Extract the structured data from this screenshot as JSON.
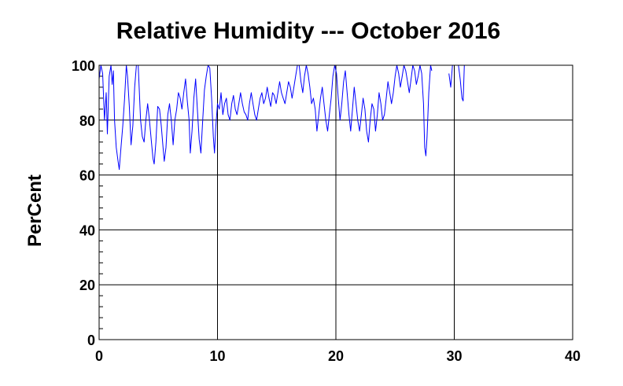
{
  "chart_data": {
    "type": "line",
    "title": "Relative Humidity --- October 2016",
    "xlabel": "",
    "ylabel": "PerCent",
    "xlim": [
      0,
      40
    ],
    "ylim": [
      0,
      100
    ],
    "x_ticks": [
      "0",
      "10",
      "20",
      "30",
      "40"
    ],
    "y_ticks": [
      "0",
      "20",
      "40",
      "60",
      "80",
      "100"
    ],
    "grid": true,
    "series": [
      {
        "color": "#0000ff",
        "points": [
          [
            0.0,
            95
          ],
          [
            0.15,
            100
          ],
          [
            0.3,
            97
          ],
          [
            0.45,
            80
          ],
          [
            0.6,
            90
          ],
          [
            0.7,
            75
          ],
          [
            0.85,
            96
          ],
          [
            1.0,
            100
          ],
          [
            1.1,
            93
          ],
          [
            1.2,
            98
          ],
          [
            1.3,
            80
          ],
          [
            1.45,
            70
          ],
          [
            1.6,
            65
          ],
          [
            1.7,
            62
          ],
          [
            1.85,
            70
          ],
          [
            2.0,
            78
          ],
          [
            2.15,
            88
          ],
          [
            2.3,
            100
          ],
          [
            2.4,
            96
          ],
          [
            2.55,
            85
          ],
          [
            2.7,
            71
          ],
          [
            2.85,
            78
          ],
          [
            3.0,
            92
          ],
          [
            3.15,
            100
          ],
          [
            3.3,
            100
          ],
          [
            3.4,
            90
          ],
          [
            3.5,
            80
          ],
          [
            3.65,
            74
          ],
          [
            3.8,
            72
          ],
          [
            3.95,
            80
          ],
          [
            4.1,
            86
          ],
          [
            4.25,
            80
          ],
          [
            4.4,
            73
          ],
          [
            4.55,
            66
          ],
          [
            4.65,
            64
          ],
          [
            4.8,
            72
          ],
          [
            4.95,
            85
          ],
          [
            5.1,
            84
          ],
          [
            5.25,
            78
          ],
          [
            5.4,
            70
          ],
          [
            5.5,
            65
          ],
          [
            5.65,
            70
          ],
          [
            5.8,
            82
          ],
          [
            5.95,
            86
          ],
          [
            6.1,
            80
          ],
          [
            6.25,
            71
          ],
          [
            6.4,
            80
          ],
          [
            6.55,
            84
          ],
          [
            6.7,
            90
          ],
          [
            6.85,
            88
          ],
          [
            7.0,
            84
          ],
          [
            7.15,
            90
          ],
          [
            7.3,
            95
          ],
          [
            7.45,
            87
          ],
          [
            7.6,
            80
          ],
          [
            7.7,
            68
          ],
          [
            7.85,
            76
          ],
          [
            8.0,
            88
          ],
          [
            8.15,
            95
          ],
          [
            8.3,
            84
          ],
          [
            8.45,
            73
          ],
          [
            8.6,
            68
          ],
          [
            8.75,
            80
          ],
          [
            8.9,
            91
          ],
          [
            9.05,
            96
          ],
          [
            9.2,
            100
          ],
          [
            9.35,
            99
          ],
          [
            9.5,
            88
          ],
          [
            9.65,
            74
          ],
          [
            9.75,
            68
          ],
          [
            9.85,
            77
          ],
          [
            10.0,
            86
          ],
          [
            10.15,
            84
          ],
          [
            10.3,
            90
          ],
          [
            10.45,
            82
          ],
          [
            10.6,
            86
          ],
          [
            10.75,
            88
          ],
          [
            10.9,
            82
          ],
          [
            11.05,
            80
          ],
          [
            11.2,
            86
          ],
          [
            11.35,
            89
          ],
          [
            11.5,
            84
          ],
          [
            11.65,
            82
          ],
          [
            11.8,
            86
          ],
          [
            11.95,
            90
          ],
          [
            12.1,
            86
          ],
          [
            12.25,
            83
          ],
          [
            12.4,
            82
          ],
          [
            12.55,
            80
          ],
          [
            12.7,
            86
          ],
          [
            12.85,
            90
          ],
          [
            13.0,
            86
          ],
          [
            13.15,
            82
          ],
          [
            13.3,
            80
          ],
          [
            13.45,
            84
          ],
          [
            13.6,
            88
          ],
          [
            13.75,
            90
          ],
          [
            13.9,
            86
          ],
          [
            14.05,
            88
          ],
          [
            14.2,
            92
          ],
          [
            14.35,
            88
          ],
          [
            14.5,
            85
          ],
          [
            14.65,
            90
          ],
          [
            14.8,
            89
          ],
          [
            14.95,
            86
          ],
          [
            15.1,
            90
          ],
          [
            15.25,
            94
          ],
          [
            15.4,
            90
          ],
          [
            15.55,
            88
          ],
          [
            15.7,
            86
          ],
          [
            15.85,
            90
          ],
          [
            16.0,
            94
          ],
          [
            16.15,
            92
          ],
          [
            16.3,
            88
          ],
          [
            16.45,
            92
          ],
          [
            16.6,
            96
          ],
          [
            16.75,
            100
          ],
          [
            16.9,
            100
          ],
          [
            17.05,
            94
          ],
          [
            17.2,
            90
          ],
          [
            17.35,
            96
          ],
          [
            17.5,
            100
          ],
          [
            17.65,
            97
          ],
          [
            17.8,
            92
          ],
          [
            17.95,
            86
          ],
          [
            18.1,
            88
          ],
          [
            18.25,
            84
          ],
          [
            18.4,
            76
          ],
          [
            18.55,
            82
          ],
          [
            18.7,
            88
          ],
          [
            18.85,
            92
          ],
          [
            19.0,
            86
          ],
          [
            19.15,
            80
          ],
          [
            19.3,
            76
          ],
          [
            19.45,
            82
          ],
          [
            19.6,
            88
          ],
          [
            19.75,
            96
          ],
          [
            19.9,
            100
          ],
          [
            20.05,
            97
          ],
          [
            20.2,
            88
          ],
          [
            20.35,
            80
          ],
          [
            20.5,
            86
          ],
          [
            20.65,
            94
          ],
          [
            20.8,
            98
          ],
          [
            20.95,
            90
          ],
          [
            21.1,
            82
          ],
          [
            21.25,
            76
          ],
          [
            21.4,
            84
          ],
          [
            21.55,
            92
          ],
          [
            21.7,
            86
          ],
          [
            21.85,
            80
          ],
          [
            22.0,
            76
          ],
          [
            22.15,
            82
          ],
          [
            22.3,
            88
          ],
          [
            22.45,
            84
          ],
          [
            22.6,
            76
          ],
          [
            22.75,
            72
          ],
          [
            22.9,
            80
          ],
          [
            23.05,
            86
          ],
          [
            23.2,
            84
          ],
          [
            23.35,
            76
          ],
          [
            23.5,
            82
          ],
          [
            23.65,
            90
          ],
          [
            23.8,
            86
          ],
          [
            23.95,
            80
          ],
          [
            24.1,
            82
          ],
          [
            24.25,
            88
          ],
          [
            24.4,
            94
          ],
          [
            24.55,
            90
          ],
          [
            24.7,
            86
          ],
          [
            24.85,
            90
          ],
          [
            25.0,
            96
          ],
          [
            25.15,
            100
          ],
          [
            25.3,
            97
          ],
          [
            25.45,
            92
          ],
          [
            25.6,
            96
          ],
          [
            25.75,
            100
          ],
          [
            25.9,
            98
          ],
          [
            26.05,
            94
          ],
          [
            26.2,
            90
          ],
          [
            26.35,
            95
          ],
          [
            26.5,
            100
          ],
          [
            26.65,
            98
          ],
          [
            26.8,
            93
          ],
          [
            26.95,
            96
          ],
          [
            27.1,
            100
          ],
          [
            27.25,
            97
          ],
          [
            27.4,
            86
          ],
          [
            27.5,
            70
          ],
          [
            27.6,
            67
          ],
          [
            27.7,
            74
          ],
          [
            27.85,
            90
          ],
          [
            28.0,
            100
          ],
          [
            28.1,
            98
          ]
        ]
      },
      {
        "color": "#0000ff",
        "points": [
          [
            29.55,
            97
          ],
          [
            29.7,
            92
          ],
          [
            29.85,
            100
          ],
          [
            30.0,
            100
          ]
        ]
      },
      {
        "color": "#0000ff",
        "points": [
          [
            30.35,
            100
          ],
          [
            30.5,
            95
          ],
          [
            30.65,
            88
          ],
          [
            30.75,
            87
          ],
          [
            30.85,
            100
          ]
        ]
      }
    ]
  }
}
